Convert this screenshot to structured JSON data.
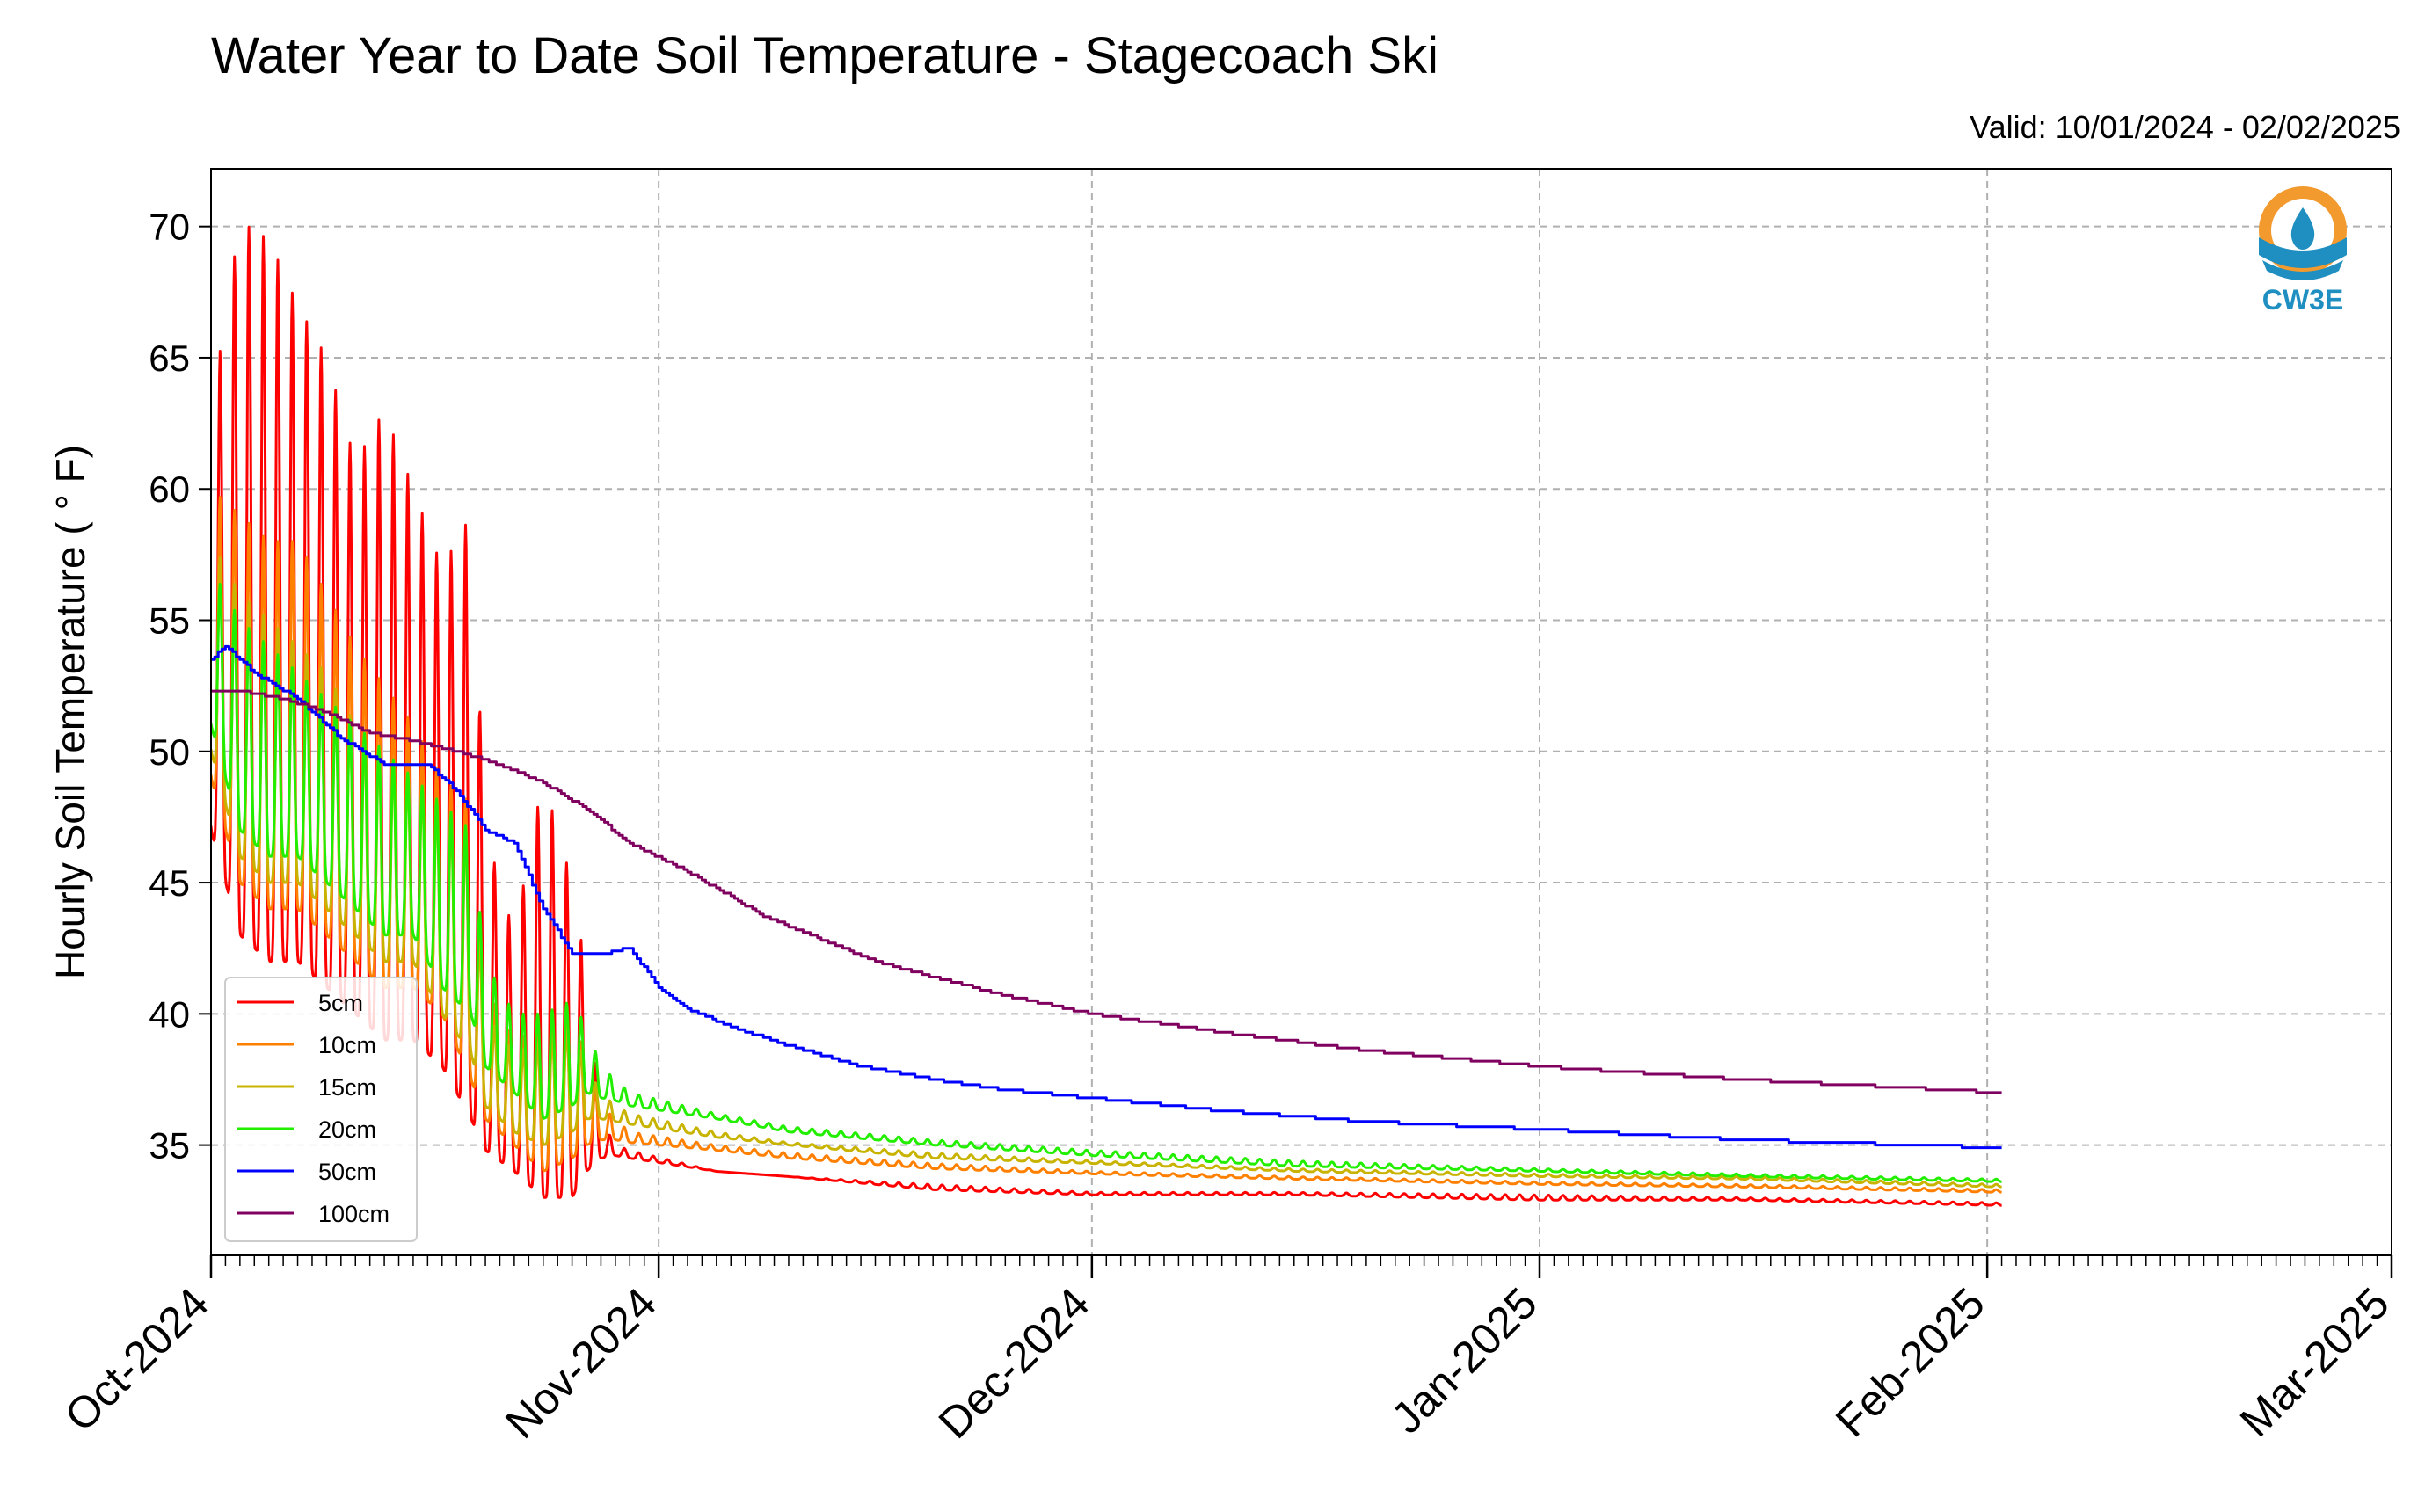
{
  "colors": {
    "grid": "#b0b0b0",
    "axis": "#000000",
    "logo_orange": "#f29a2e",
    "logo_blue": "#1e8fc0"
  },
  "logo": {
    "icon": "cw3e-logo-icon",
    "text": "CW3E"
  },
  "chart_data": {
    "type": "line",
    "title": "Water Year to Date Soil Temperature - Stagecoach Ski",
    "subtitle": "Valid: 10/01/2024 - 02/02/2025",
    "xlabel": "",
    "ylabel": "Hourly Soil Temperature ( ° F)",
    "xlim": [
      "2024-10-01",
      "2025-03-01"
    ],
    "ylim": [
      30.8,
      72.2
    ],
    "x_ticks": [
      {
        "date": "2024-10-01",
        "label": "Oct-2024"
      },
      {
        "date": "2024-11-01",
        "label": "Nov-2024"
      },
      {
        "date": "2024-12-01",
        "label": "Dec-2024"
      },
      {
        "date": "2025-01-01",
        "label": "Jan-2025"
      },
      {
        "date": "2025-02-01",
        "label": "Feb-2025"
      },
      {
        "date": "2025-03-01",
        "label": "Mar-2025"
      }
    ],
    "y_ticks": [
      35,
      40,
      45,
      50,
      55,
      60,
      65,
      70
    ],
    "grid": true,
    "legend": "lower-left",
    "series": [
      {
        "name": "5cm",
        "color": "#ff0000",
        "diurnal": true,
        "x": [
          "2024-10-01",
          "2024-10-03",
          "2024-10-05",
          "2024-10-07",
          "2024-10-09",
          "2024-10-11",
          "2024-10-13",
          "2024-10-15",
          "2024-10-17",
          "2024-10-19",
          "2024-10-20",
          "2024-10-22",
          "2024-10-24",
          "2024-10-26",
          "2024-10-27",
          "2024-10-28",
          "2024-10-29",
          "2024-10-30",
          "2024-11-05",
          "2024-11-10",
          "2024-11-20",
          "2024-12-01",
          "2024-12-15",
          "2025-01-01",
          "2025-01-15",
          "2025-02-02"
        ],
        "max": [
          63,
          70.2,
          69.5,
          67,
          65,
          61,
          63,
          60,
          57,
          59,
          47,
          43,
          49,
          45,
          41.5,
          36,
          35,
          34.8,
          34,
          33.8,
          33.5,
          33.2,
          33.2,
          33.1,
          33.0,
          32.8
        ],
        "min": [
          47,
          43,
          42,
          42,
          41,
          40,
          39,
          39,
          38,
          36,
          34.8,
          34,
          33,
          33,
          34,
          34.5,
          34.6,
          34.5,
          34,
          33.8,
          33.3,
          33.1,
          33.1,
          32.9,
          32.9,
          32.7
        ]
      },
      {
        "name": "10cm",
        "color": "#ff8000",
        "diurnal": true,
        "x": [
          "2024-10-01",
          "2024-10-03",
          "2024-10-05",
          "2024-10-07",
          "2024-10-09",
          "2024-10-11",
          "2024-10-13",
          "2024-10-15",
          "2024-10-17",
          "2024-10-19",
          "2024-10-20",
          "2024-10-22",
          "2024-10-24",
          "2024-10-26",
          "2024-10-27",
          "2024-10-28",
          "2024-10-29",
          "2024-10-30",
          "2024-11-05",
          "2024-11-10",
          "2024-11-20",
          "2024-12-01",
          "2024-12-15",
          "2025-01-01",
          "2025-01-15",
          "2025-02-02"
        ],
        "max": [
          60,
          59,
          58,
          58,
          56,
          54,
          52.5,
          51,
          49,
          48,
          41,
          39,
          39.5,
          40.5,
          38,
          36.5,
          36,
          35.5,
          35,
          34.7,
          34.3,
          34.0,
          33.8,
          33.6,
          33.5,
          33.3
        ],
        "min": [
          49,
          45,
          44,
          44,
          43,
          42,
          41,
          41,
          40,
          37.5,
          36,
          35,
          34,
          34.5,
          35,
          35.2,
          35.2,
          35.1,
          34.8,
          34.5,
          34.1,
          33.9,
          33.7,
          33.5,
          33.4,
          33.2
        ]
      },
      {
        "name": "15cm",
        "color": "#c8b400",
        "diurnal": true,
        "x": [
          "2024-10-01",
          "2024-10-03",
          "2024-10-05",
          "2024-10-07",
          "2024-10-09",
          "2024-10-11",
          "2024-10-13",
          "2024-10-15",
          "2024-10-17",
          "2024-10-19",
          "2024-10-20",
          "2024-10-22",
          "2024-10-24",
          "2024-10-26",
          "2024-10-27",
          "2024-10-28",
          "2024-10-29",
          "2024-10-30",
          "2024-11-05",
          "2024-11-10",
          "2024-11-20",
          "2024-12-01",
          "2024-12-15",
          "2025-01-01",
          "2025-01-15",
          "2025-02-02"
        ],
        "max": [
          58,
          56,
          55,
          54,
          53,
          51,
          50,
          49,
          48,
          47,
          40,
          38.5,
          39,
          39.5,
          38,
          37,
          36.5,
          36.2,
          35.5,
          35.1,
          34.7,
          34.4,
          34.1,
          33.9,
          33.8,
          33.5
        ],
        "min": [
          50,
          46,
          45,
          45,
          44,
          43,
          42,
          42,
          40,
          38.5,
          36.5,
          35.5,
          35,
          35.5,
          36,
          36,
          35.9,
          35.8,
          35.3,
          35.0,
          34.5,
          34.3,
          34.0,
          33.8,
          33.7,
          33.4
        ]
      },
      {
        "name": "20cm",
        "color": "#22ee00",
        "diurnal": true,
        "x": [
          "2024-10-01",
          "2024-10-03",
          "2024-10-05",
          "2024-10-07",
          "2024-10-09",
          "2024-10-11",
          "2024-10-13",
          "2024-10-15",
          "2024-10-17",
          "2024-10-19",
          "2024-10-20",
          "2024-10-22",
          "2024-10-24",
          "2024-10-26",
          "2024-10-27",
          "2024-10-28",
          "2024-10-29",
          "2024-10-30",
          "2024-11-05",
          "2024-11-10",
          "2024-11-20",
          "2024-12-01",
          "2024-12-15",
          "2025-01-01",
          "2025-01-15",
          "2025-02-02"
        ],
        "max": [
          57,
          55,
          54,
          53,
          52,
          51,
          50,
          49,
          48,
          47,
          42,
          40,
          40,
          40.5,
          39.5,
          38,
          37.5,
          37,
          36.2,
          35.7,
          35.2,
          34.8,
          34.4,
          34.1,
          33.9,
          33.7
        ],
        "min": [
          51,
          47,
          46,
          46,
          45,
          44,
          43,
          43,
          41,
          40,
          38,
          37,
          36,
          36.5,
          37,
          36.8,
          36.7,
          36.5,
          36.0,
          35.5,
          35.0,
          34.6,
          34.2,
          34.0,
          33.8,
          33.6
        ]
      },
      {
        "name": "50cm",
        "color": "#0000ff",
        "diurnal": false,
        "x": [
          "2024-10-01",
          "2024-10-02",
          "2024-10-04",
          "2024-10-07",
          "2024-10-10",
          "2024-10-13",
          "2024-10-16",
          "2024-10-18",
          "2024-10-20",
          "2024-10-22",
          "2024-10-24",
          "2024-10-26",
          "2024-10-28",
          "2024-10-30",
          "2024-11-01",
          "2024-11-03",
          "2024-11-06",
          "2024-11-10",
          "2024-11-15",
          "2024-11-20",
          "2024-11-25",
          "2024-12-01",
          "2024-12-10",
          "2024-12-20",
          "2025-01-01",
          "2025-01-15",
          "2025-02-02"
        ],
        "y": [
          53.5,
          54,
          53,
          52,
          50.5,
          49.5,
          49.5,
          48.5,
          47,
          46.5,
          44,
          42.3,
          42.3,
          42.5,
          41,
          40.2,
          39.5,
          38.8,
          38,
          37.5,
          37.1,
          36.8,
          36.3,
          35.9,
          35.6,
          35.2,
          34.9
        ]
      },
      {
        "name": "100cm",
        "color": "#800060",
        "diurnal": false,
        "x": [
          "2024-10-01",
          "2024-10-03",
          "2024-10-06",
          "2024-10-09",
          "2024-10-12",
          "2024-10-15",
          "2024-10-18",
          "2024-10-21",
          "2024-10-24",
          "2024-10-27",
          "2024-10-30",
          "2024-11-02",
          "2024-11-05",
          "2024-11-08",
          "2024-11-12",
          "2024-11-16",
          "2024-11-20",
          "2024-11-25",
          "2024-12-01",
          "2024-12-10",
          "2024-12-20",
          "2025-01-01",
          "2025-01-15",
          "2025-02-02"
        ],
        "y": [
          52.3,
          52.3,
          52,
          51.5,
          50.7,
          50.4,
          50,
          49.5,
          48.8,
          47.8,
          46.5,
          45.7,
          44.8,
          43.8,
          42.9,
          42,
          41.4,
          40.7,
          40.0,
          39.3,
          38.6,
          38.0,
          37.5,
          37.0
        ]
      }
    ]
  }
}
